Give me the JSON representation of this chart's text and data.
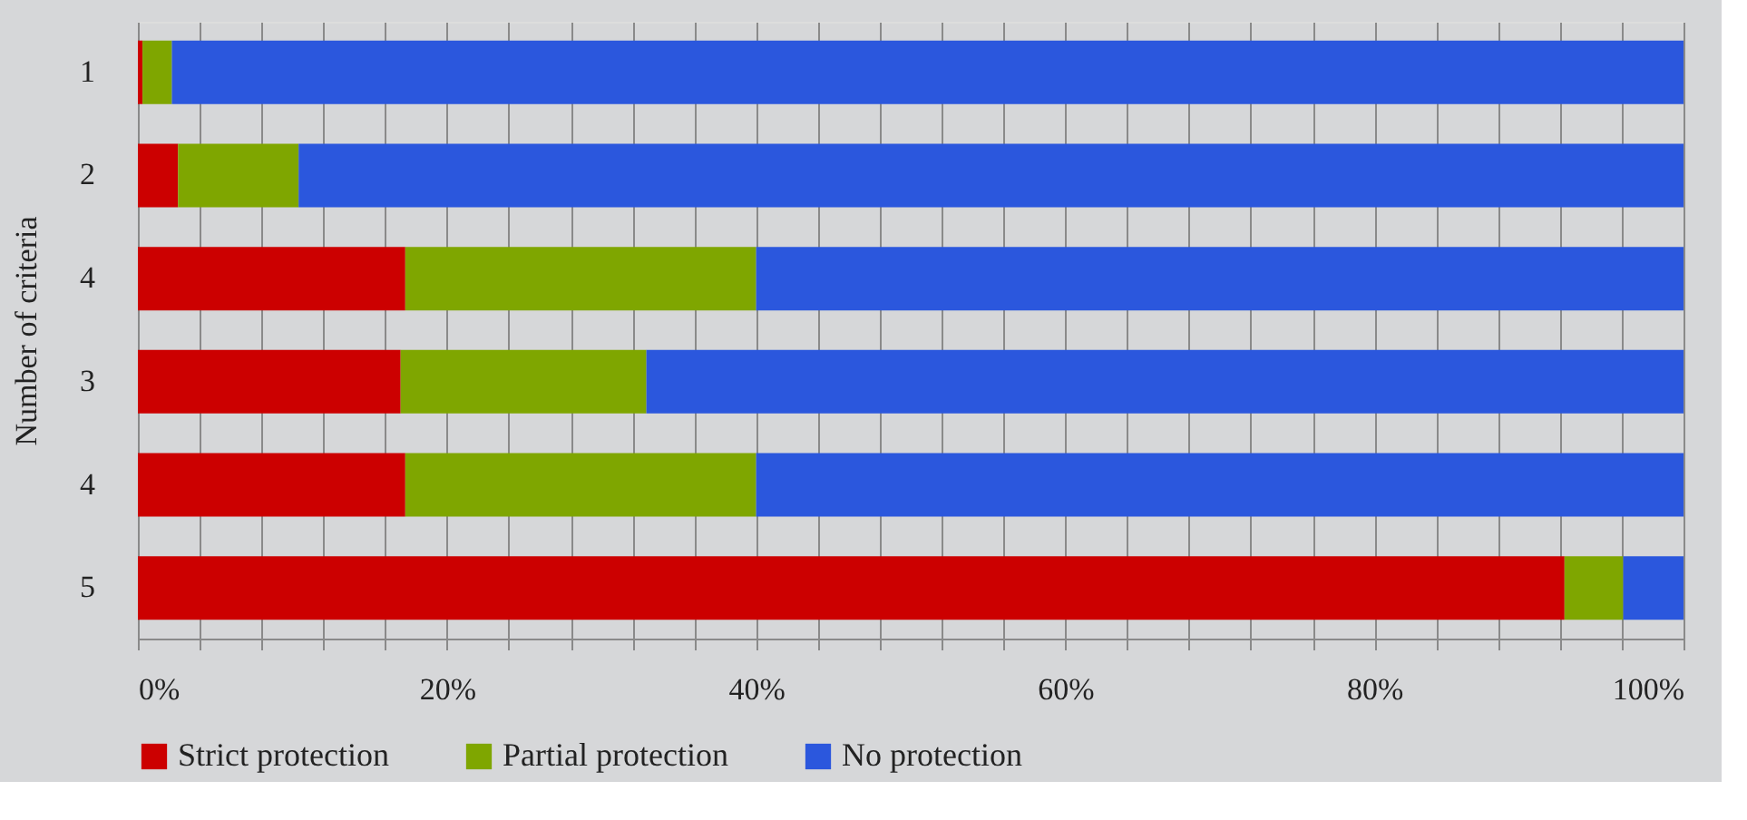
{
  "chart_data": {
    "type": "bar",
    "orientation": "horizontal",
    "stacked": true,
    "ylabel": "Number of criteria",
    "categories": [
      "1",
      "2",
      "4",
      "3",
      "4",
      "5"
    ],
    "series": [
      {
        "name": "Strict protection",
        "color": "#cc0000",
        "values": [
          0.3,
          2.6,
          17.3,
          17.0,
          17.3,
          92.3
        ]
      },
      {
        "name": "Partial protection",
        "color": "#7fa600",
        "values": [
          1.9,
          7.8,
          22.7,
          15.9,
          22.7,
          3.8
        ]
      },
      {
        "name": "No protection",
        "color": "#2b57dd",
        "values": [
          97.8,
          89.6,
          60.0,
          67.1,
          60.0,
          3.9
        ]
      }
    ],
    "xlim": [
      0,
      100
    ],
    "xticks": [
      {
        "value": 0,
        "label": "0%"
      },
      {
        "value": 4,
        "label": null
      },
      {
        "value": 8,
        "label": null
      },
      {
        "value": 12,
        "label": null
      },
      {
        "value": 16,
        "label": null
      },
      {
        "value": 20,
        "label": "20%"
      },
      {
        "value": 24,
        "label": null
      },
      {
        "value": 28,
        "label": null
      },
      {
        "value": 32,
        "label": null
      },
      {
        "value": 36,
        "label": null
      },
      {
        "value": 40,
        "label": "40%"
      },
      {
        "value": 44,
        "label": null
      },
      {
        "value": 48,
        "label": null
      },
      {
        "value": 52,
        "label": null
      },
      {
        "value": 56,
        "label": null
      },
      {
        "value": 60,
        "label": "60%"
      },
      {
        "value": 64,
        "label": null
      },
      {
        "value": 68,
        "label": null
      },
      {
        "value": 72,
        "label": null
      },
      {
        "value": 76,
        "label": null
      },
      {
        "value": 80,
        "label": "80%"
      },
      {
        "value": 84,
        "label": null
      },
      {
        "value": 88,
        "label": null
      },
      {
        "value": 92,
        "label": null
      },
      {
        "value": 96,
        "label": null
      },
      {
        "value": 100,
        "label": "100%"
      }
    ],
    "grid": "x",
    "legend": "bottom"
  }
}
